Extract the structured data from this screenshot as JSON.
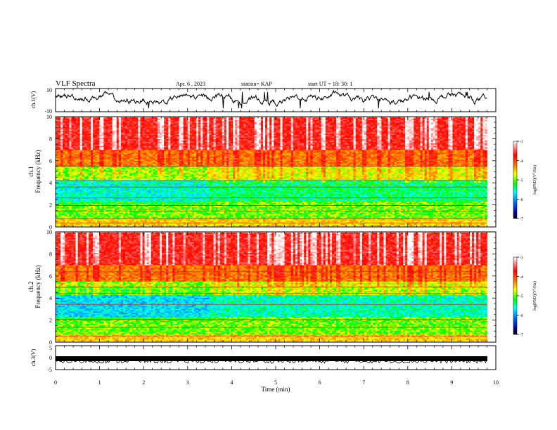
{
  "header": {
    "title": "VLF Spectra",
    "date": "Apr. 6  , 2023",
    "station": "station= KAP",
    "start": "start  UT  =   18: 30: 1"
  },
  "chart_data": [
    {
      "type": "line",
      "name": "ch1-waveform",
      "ylabel": "ch.1(V)",
      "yticks": [
        "10",
        "-10"
      ],
      "ylim": [
        -10,
        10
      ],
      "x_range_min": [
        0,
        9.8
      ],
      "note": "waveform oscillating roughly between -4 and 5 V"
    },
    {
      "type": "heatmap",
      "name": "ch1-spectrogram",
      "ylabel": "ch.1\nFrequency (kHz)",
      "ylabel_lines": [
        "ch.1",
        "Frequency  (kHz)"
      ],
      "yticks": [
        "0",
        "2",
        "4",
        "6",
        "8",
        "10"
      ],
      "ylim": [
        0,
        10
      ],
      "xlim": [
        0,
        10
      ],
      "colorbar": {
        "label": "log(PSD)(V²/Hz)",
        "ticks": [
          "-3",
          "-4",
          "-5",
          "-6",
          "-7"
        ],
        "range": [
          -7,
          -3
        ]
      }
    },
    {
      "type": "heatmap",
      "name": "ch2-spectrogram",
      "ylabel_lines": [
        "ch.2",
        "Frequency  (kHz)"
      ],
      "yticks": [
        "0",
        "2",
        "4",
        "6",
        "8",
        "10"
      ],
      "ylim": [
        0,
        10
      ],
      "xlim": [
        0,
        10
      ],
      "colorbar": {
        "label": "log(PSD)(V²/Hz)",
        "ticks": [
          "-3",
          "-4",
          "-5",
          "-6",
          "-7"
        ],
        "range": [
          -7,
          -3
        ]
      }
    },
    {
      "type": "line",
      "name": "ch3-waveform",
      "ylabel": "ch.3(V)",
      "yticks": [
        "5",
        "0",
        "-5"
      ],
      "ylim": [
        -5,
        5
      ],
      "note": "dense band centered near -1.5 V"
    }
  ],
  "xaxis": {
    "label": "Time  (min)",
    "ticks": [
      "0",
      "1",
      "2",
      "3",
      "4",
      "5",
      "6",
      "7",
      "8",
      "9",
      "10"
    ],
    "range": [
      0,
      10
    ]
  },
  "colorbar_label_parts": {
    "pre": "log(PSD)(V",
    "sup": "2",
    "post": "/Hz)"
  }
}
